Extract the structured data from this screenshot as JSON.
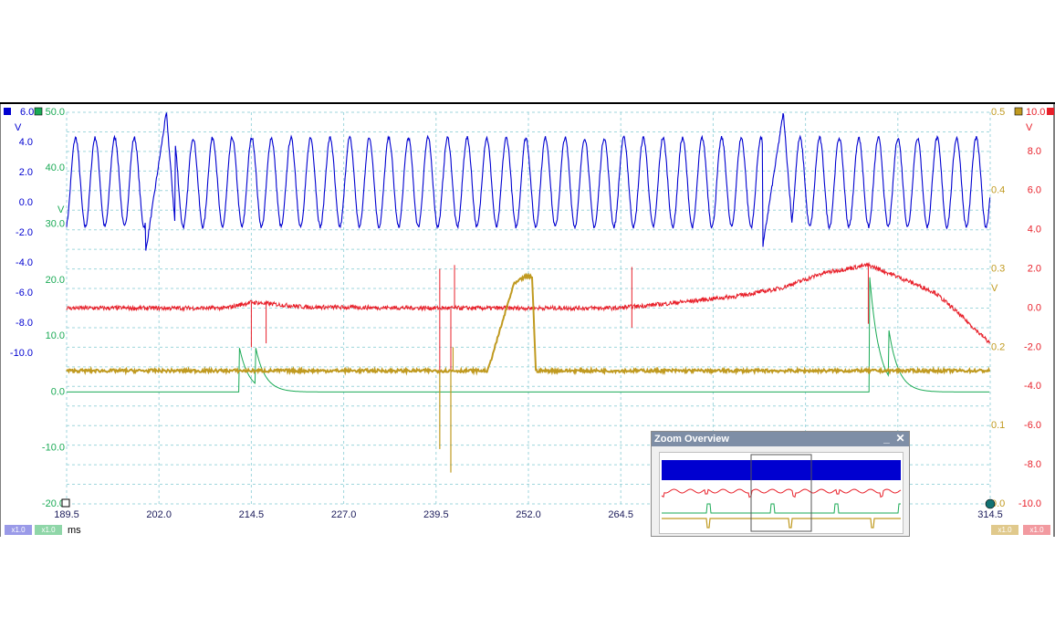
{
  "chart_data": {
    "type": "line",
    "x_axis": {
      "unit": "ms",
      "range": [
        189.5,
        314.5
      ],
      "ticks": [
        "189.5",
        "202.0",
        "214.5",
        "227.0",
        "239.5",
        "252.0",
        "264.5",
        "314.5"
      ]
    },
    "axes": {
      "blue": {
        "unit": "V",
        "scale_max": "6.0",
        "range": [
          -20,
          6
        ],
        "ticks": [
          "4.0",
          "2.0",
          "0.0",
          "-2.0",
          "-4.0",
          "-6.0",
          "-8.0",
          "-10.0"
        ]
      },
      "green": {
        "unit": "V",
        "range": [
          -20,
          50
        ],
        "ticks": [
          "50.0",
          "40.0",
          "30.0",
          "20.0",
          "10.0",
          "0.0",
          "-10.0",
          "-20.0"
        ]
      },
      "red": {
        "unit": "V",
        "scale_max": "10.0",
        "range": [
          -10,
          10
        ],
        "ticks": [
          "8.0",
          "6.0",
          "4.0",
          "2.0",
          "0.0",
          "-2.0",
          "-4.0",
          "-6.0",
          "-8.0",
          "-10.0"
        ]
      },
      "gold": {
        "unit": "V",
        "range": [
          0,
          0.5
        ],
        "ticks": [
          "0.5",
          "0.4",
          "0.3",
          "0.2",
          "0.1",
          "0.0"
        ]
      }
    },
    "series": [
      {
        "color": "#0000d0",
        "axis": "blue",
        "events": [
          {
            "x": 203.0,
            "peak": 6.0,
            "trough": -3.3
          },
          {
            "x": 286.5,
            "peak": 6.0,
            "trough": -3.0
          }
        ],
        "oscillation": {
          "min": -1.6,
          "max": 4.3,
          "period_ms": 2.65
        }
      },
      {
        "color": "#e8202a",
        "axis": "red",
        "points": [
          [
            189.5,
            0.0
          ],
          [
            211,
            0.0
          ],
          [
            214.5,
            0.3
          ],
          [
            222,
            0.05
          ],
          [
            240,
            0.0
          ],
          [
            264,
            0.0
          ],
          [
            270,
            0.2
          ],
          [
            280,
            0.6
          ],
          [
            286,
            1.0
          ],
          [
            292,
            1.8
          ],
          [
            298,
            2.2
          ],
          [
            302,
            1.6
          ],
          [
            307,
            0.8
          ],
          [
            310,
            -0.2
          ],
          [
            314.5,
            -1.8
          ]
        ],
        "spikes": [
          [
            214.5,
            -2.0
          ],
          [
            216.5,
            -1.8
          ],
          [
            240.0,
            2.0
          ],
          [
            240.0,
            -3.4
          ],
          [
            241.5,
            -3.2
          ],
          [
            242.0,
            2.2
          ],
          [
            266.0,
            2.1
          ],
          [
            266.0,
            -1.0
          ],
          [
            298.0,
            -0.8
          ]
        ]
      },
      {
        "color": "#1aaa55",
        "axis": "green",
        "pulses": [
          [
            212.8,
            8.5
          ],
          [
            215.0,
            8.5
          ],
          [
            298.2,
            20.5
          ],
          [
            300.8,
            11.0
          ]
        ],
        "baseline": 0.0
      },
      {
        "color": "#c09a20",
        "axis": "gold",
        "points": [
          [
            189.5,
            0.17
          ],
          [
            246.5,
            0.17
          ],
          [
            250,
            0.28
          ],
          [
            251.5,
            0.29
          ],
          [
            252.5,
            0.29
          ],
          [
            253.0,
            0.17
          ],
          [
            314.5,
            0.17
          ]
        ],
        "spikes": [
          [
            240.0,
            0.07
          ],
          [
            241.5,
            0.04
          ],
          [
            241.8,
            0.2
          ]
        ],
        "baseline": 0.17
      }
    ],
    "badges": {
      "scale_blue": "x1.0",
      "scale_green": "x1.0",
      "scale_gold": "x1.0",
      "scale_red": "x1.0"
    },
    "grid": true
  },
  "zoom_overview": {
    "title": "Zoom Overview",
    "minimize": "_",
    "close": "✕"
  },
  "colors": {
    "blue": "#0000d0",
    "green": "#1aaa55",
    "red": "#e8202a",
    "gold": "#c09a20",
    "grid": "#9fd6dc",
    "frame": "#000000"
  }
}
